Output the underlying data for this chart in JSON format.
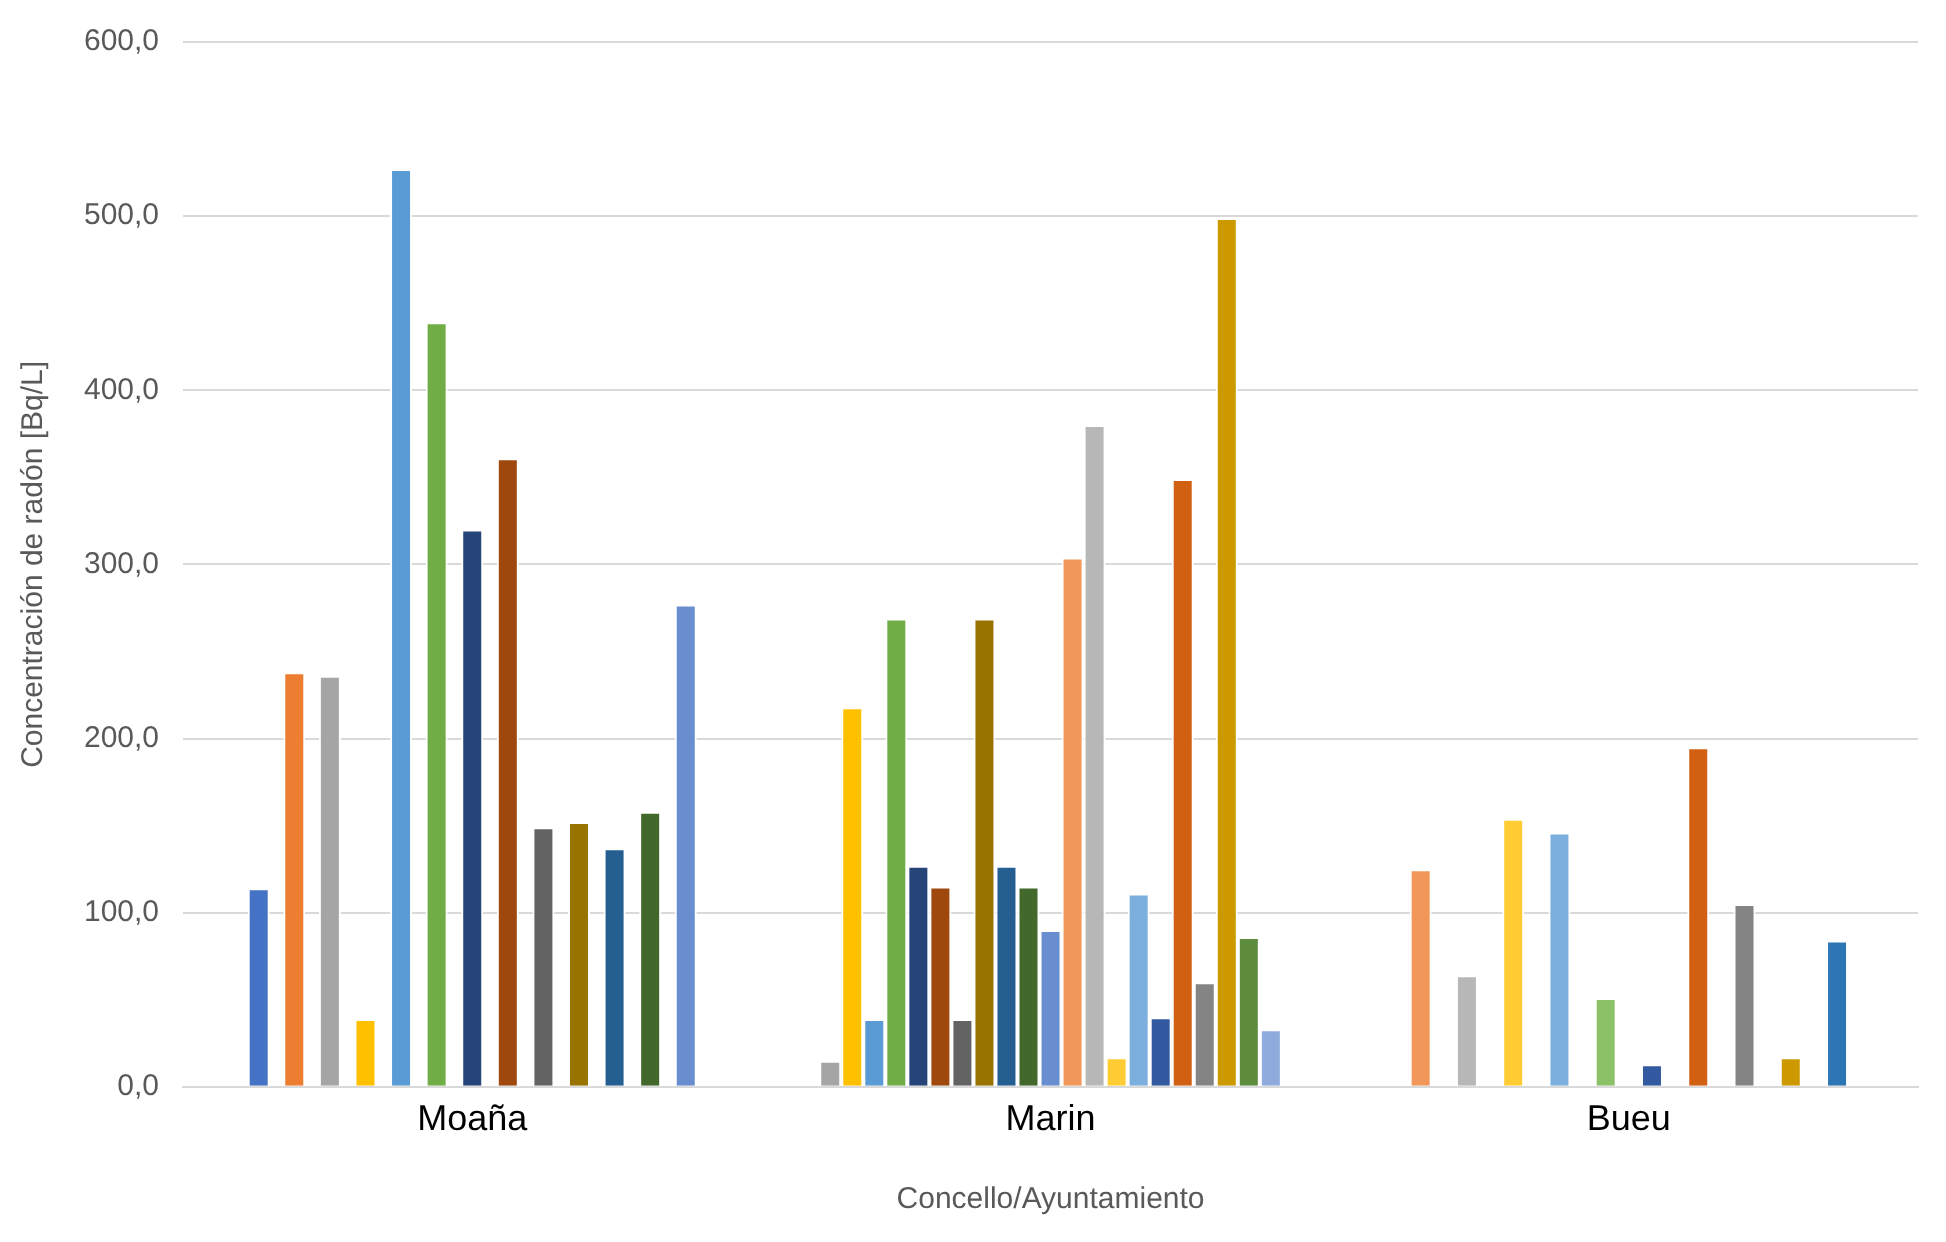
{
  "chart_data": {
    "type": "bar",
    "categories": [
      "Moaña",
      "Marin",
      "Bueu"
    ],
    "xlabel": "Concello/Ayuntamiento",
    "ylabel": "Concentración de radón [Bq/L]",
    "ylim": [
      0,
      600
    ],
    "yticks": [
      {
        "value": 0,
        "label": "0,0"
      },
      {
        "value": 100,
        "label": "100,0"
      },
      {
        "value": 200,
        "label": "200,0"
      },
      {
        "value": 300,
        "label": "300,0"
      },
      {
        "value": 400,
        "label": "400,0"
      },
      {
        "value": 500,
        "label": "500,0"
      },
      {
        "value": 600,
        "label": "600,0"
      }
    ],
    "grid": "y",
    "legend": false,
    "series": [
      {
        "color": "#4472c4",
        "values": [
          114,
          null,
          null
        ]
      },
      {
        "color": "#ed7d31",
        "values": [
          238,
          null,
          null
        ]
      },
      {
        "color": "#a5a5a5",
        "values": [
          236,
          null,
          null
        ]
      },
      {
        "color": "#ffc000",
        "values": [
          39,
          null,
          null
        ]
      },
      {
        "color": "#5b9bd5",
        "values": [
          527,
          null,
          null
        ]
      },
      {
        "color": "#70ad47",
        "values": [
          439,
          null,
          null
        ]
      },
      {
        "color": "#264478",
        "values": [
          320,
          null,
          null
        ]
      },
      {
        "color": "#9e480e",
        "values": [
          361,
          null,
          null
        ]
      },
      {
        "color": "#636363",
        "values": [
          149,
          null,
          null
        ]
      },
      {
        "color": "#997300",
        "values": [
          152,
          null,
          null
        ]
      },
      {
        "color": "#255e91",
        "values": [
          137,
          null,
          null
        ]
      },
      {
        "color": "#43682b",
        "values": [
          158,
          null,
          null
        ]
      },
      {
        "color": "#698ed0",
        "values": [
          277,
          null,
          null
        ]
      },
      {
        "color": "#a5a5a5",
        "values": [
          null,
          15,
          null
        ]
      },
      {
        "color": "#ffc000",
        "values": [
          null,
          218,
          null
        ]
      },
      {
        "color": "#5b9bd5",
        "values": [
          null,
          39,
          null
        ]
      },
      {
        "color": "#70ad47",
        "values": [
          null,
          269,
          null
        ]
      },
      {
        "color": "#264478",
        "values": [
          null,
          127,
          null
        ]
      },
      {
        "color": "#9e480e",
        "values": [
          null,
          115,
          null
        ]
      },
      {
        "color": "#636363",
        "values": [
          null,
          39,
          null
        ]
      },
      {
        "color": "#997300",
        "values": [
          null,
          269,
          null
        ]
      },
      {
        "color": "#255e91",
        "values": [
          null,
          127,
          null
        ]
      },
      {
        "color": "#43682b",
        "values": [
          null,
          115,
          null
        ]
      },
      {
        "color": "#698ed0",
        "values": [
          null,
          90,
          null
        ]
      },
      {
        "color": "#f1975a",
        "values": [
          null,
          304,
          null
        ]
      },
      {
        "color": "#b7b7b7",
        "values": [
          null,
          380,
          null
        ]
      },
      {
        "color": "#ffcd33",
        "values": [
          null,
          17,
          null
        ]
      },
      {
        "color": "#7cafdd",
        "values": [
          null,
          111,
          null
        ]
      },
      {
        "color": "#335aa1",
        "values": [
          null,
          40,
          null
        ]
      },
      {
        "color": "#d26012",
        "values": [
          null,
          349,
          null
        ]
      },
      {
        "color": "#848484",
        "values": [
          null,
          60,
          null
        ]
      },
      {
        "color": "#cc9a00",
        "values": [
          null,
          499,
          null
        ]
      },
      {
        "color": "#5e8c3f",
        "values": [
          null,
          86,
          null
        ]
      },
      {
        "color": "#8faadc",
        "values": [
          null,
          33,
          null
        ]
      },
      {
        "color": "#f1975a",
        "values": [
          null,
          null,
          125
        ]
      },
      {
        "color": "#b7b7b7",
        "values": [
          null,
          null,
          64
        ]
      },
      {
        "color": "#ffcd33",
        "values": [
          null,
          null,
          154
        ]
      },
      {
        "color": "#7cafdd",
        "values": [
          null,
          null,
          146
        ]
      },
      {
        "color": "#8cc168",
        "values": [
          null,
          null,
          51
        ]
      },
      {
        "color": "#335aa1",
        "values": [
          null,
          null,
          13
        ]
      },
      {
        "color": "#d26012",
        "values": [
          null,
          null,
          195
        ]
      },
      {
        "color": "#848484",
        "values": [
          null,
          null,
          105
        ]
      },
      {
        "color": "#cc9a00",
        "values": [
          null,
          null,
          17
        ]
      },
      {
        "color": "#2e75b6",
        "values": [
          null,
          null,
          84
        ]
      }
    ]
  }
}
